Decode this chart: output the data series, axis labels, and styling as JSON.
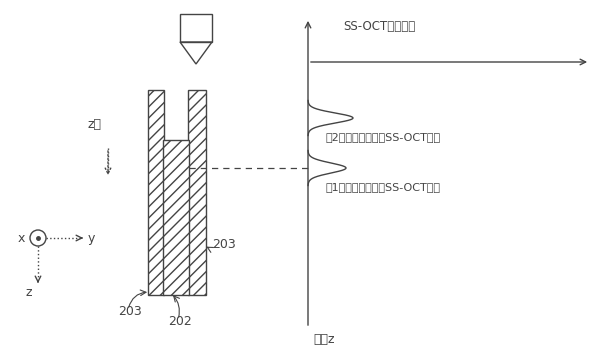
{
  "bg_color": "#ffffff",
  "fig_width": 6.06,
  "fig_height": 3.62,
  "dpi": 100,
  "label_z_axis": "z軸",
  "label_ss_oct": "SS-OCT信号強度",
  "label_signal2": "第2シート材からのSS-OCT信号",
  "label_signal1": "第1シート材からのSS-OCT信号",
  "label_pos_z": "位置z",
  "label_202": "202",
  "label_203a": "203",
  "label_203b": "203",
  "label_x": "x",
  "label_y": "y",
  "label_z": "z"
}
